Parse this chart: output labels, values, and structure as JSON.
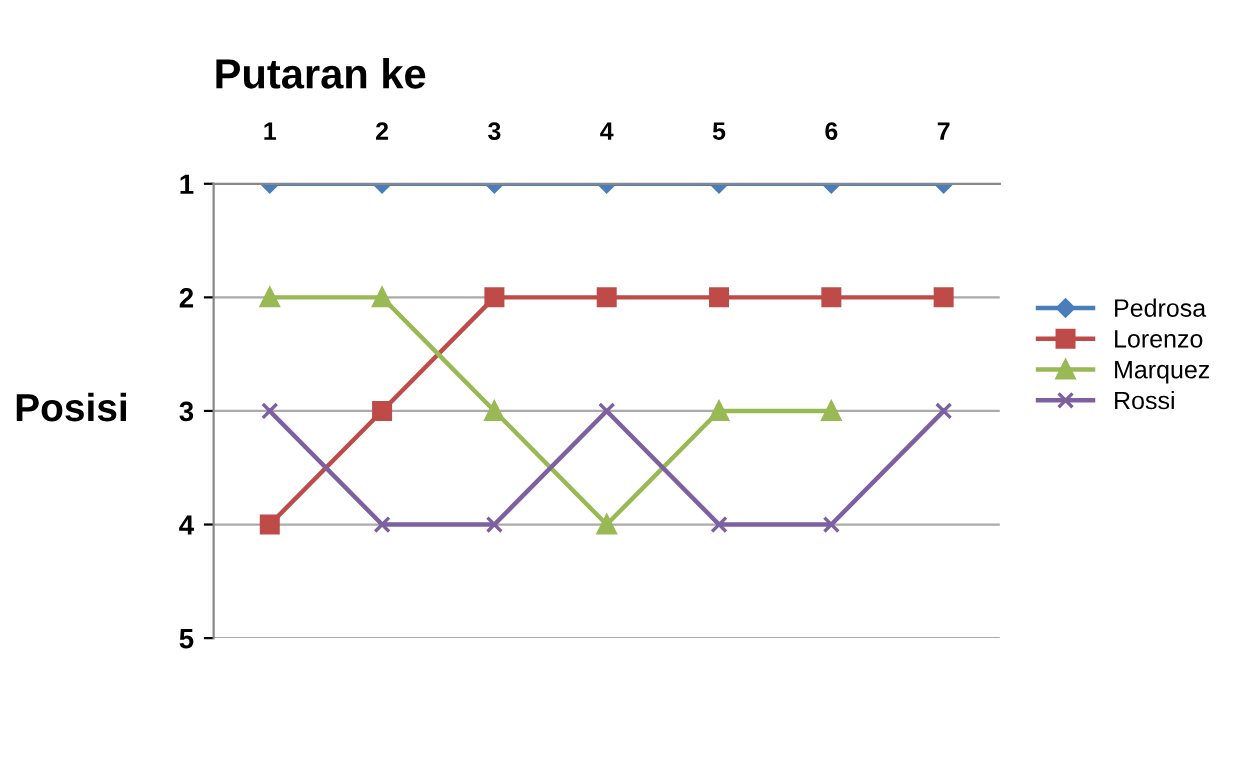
{
  "chart_data": {
    "type": "line",
    "xlabel": "Putaran ke",
    "ylabel": "Posisi",
    "categories": [
      "1",
      "2",
      "3",
      "4",
      "5",
      "6",
      "7"
    ],
    "ylim": [
      5,
      1
    ],
    "yticks": [
      1,
      2,
      3,
      4,
      5
    ],
    "grid": "y",
    "legend": "right",
    "series": [
      {
        "name": "Pedrosa",
        "color": "#4a7ebb",
        "marker": "diamond",
        "values": [
          1,
          1,
          1,
          1,
          1,
          1,
          1
        ]
      },
      {
        "name": "Lorenzo",
        "color": "#be4b48",
        "marker": "square",
        "values": [
          4,
          3,
          2,
          2,
          2,
          2,
          2
        ]
      },
      {
        "name": "Marquez",
        "color": "#98b954",
        "marker": "triangle",
        "values": [
          2,
          2,
          3,
          4,
          3,
          3,
          null
        ]
      },
      {
        "name": "Rossi",
        "color": "#7d60a0",
        "marker": "cross",
        "values": [
          3,
          4,
          4,
          3,
          4,
          4,
          3
        ]
      }
    ]
  }
}
